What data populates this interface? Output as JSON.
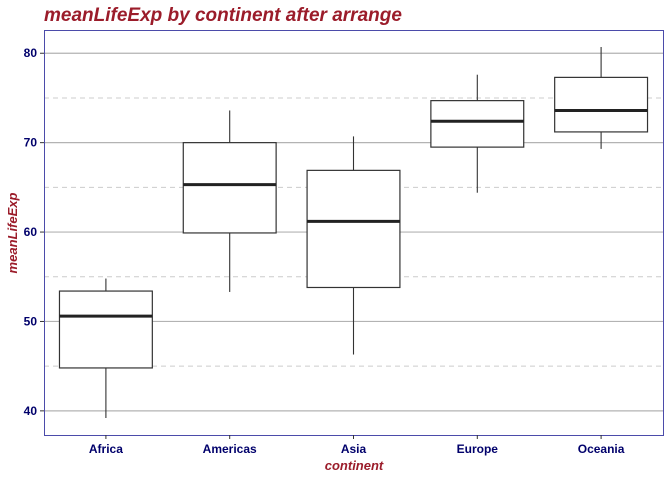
{
  "chart_data": {
    "type": "box",
    "title": "meanLifeExp by continent after arrange",
    "xlabel": "continent",
    "ylabel": "meanLifeExp",
    "ylim": [
      37.3,
      82.6
    ],
    "yticks": [
      40,
      50,
      60,
      70,
      80
    ],
    "yticks_minor": [
      45,
      55,
      65,
      75
    ],
    "grid": true,
    "categories": [
      "Africa",
      "Americas",
      "Asia",
      "Europe",
      "Oceania"
    ],
    "boxes": [
      {
        "category": "Africa",
        "min": 39.2,
        "q1": 44.8,
        "median": 50.6,
        "q3": 53.4,
        "max": 54.8
      },
      {
        "category": "Americas",
        "min": 53.3,
        "q1": 59.9,
        "median": 65.3,
        "q3": 70.0,
        "max": 73.6
      },
      {
        "category": "Asia",
        "min": 46.3,
        "q1": 53.8,
        "median": 61.2,
        "q3": 66.9,
        "max": 70.7
      },
      {
        "category": "Europe",
        "min": 64.4,
        "q1": 69.5,
        "median": 72.4,
        "q3": 74.7,
        "max": 77.6
      },
      {
        "category": "Oceania",
        "min": 69.3,
        "q1": 71.2,
        "median": 73.6,
        "q3": 77.3,
        "max": 80.7
      }
    ]
  }
}
